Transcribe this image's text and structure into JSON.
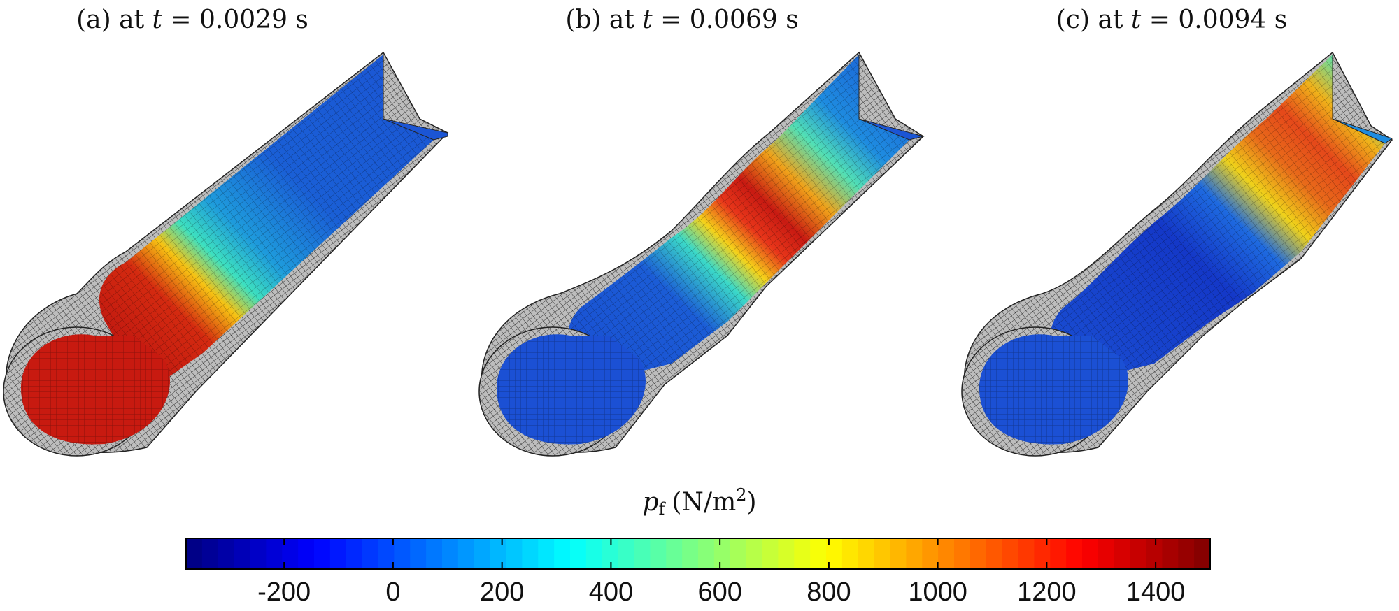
{
  "panels": [
    {
      "label": "(a) at ",
      "var": "t",
      "eq": " = 0.0029",
      "unit": " s",
      "pressure_fraction_front": 1.0,
      "high_zone": "inlet"
    },
    {
      "label": "(b) at ",
      "var": "t",
      "eq": " = 0.0069",
      "unit": " s",
      "pressure_fraction_front": 0.15,
      "high_zone": "middle"
    },
    {
      "label": "(c) at ",
      "var": "t",
      "eq": " = 0.0094",
      "unit": " s",
      "pressure_fraction_front": 0.1,
      "high_zone": "outlet"
    }
  ],
  "colorbar": {
    "title_var": "p",
    "title_sub": "f",
    "title_unit": "(N/m",
    "title_sup": "2",
    "title_close": ")",
    "min": -380,
    "max": 1500,
    "ticks": [
      -200,
      0,
      200,
      400,
      600,
      800,
      1000,
      1200,
      1400
    ],
    "tick_labels": [
      "-200",
      "0",
      "200",
      "400",
      "600",
      "800",
      "1000",
      "1200",
      "1400"
    ],
    "colormap": "jet",
    "steps": 64
  }
}
